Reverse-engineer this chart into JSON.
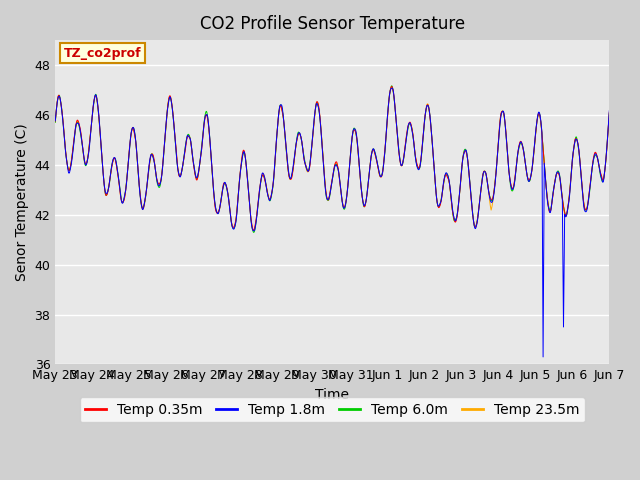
{
  "title": "CO2 Profile Sensor Temperature",
  "xlabel": "Time",
  "ylabel": "Senor Temperature (C)",
  "ylim": [
    36,
    49
  ],
  "yticks": [
    36,
    38,
    40,
    42,
    44,
    46,
    48
  ],
  "x_labels": [
    "May 23",
    "May 24",
    "May 25",
    "May 26",
    "May 27",
    "May 28",
    "May 29",
    "May 30",
    "May 31",
    "Jun 1",
    "Jun 2",
    "Jun 3",
    "Jun 4",
    "Jun 5",
    "Jun 6",
    "Jun 7"
  ],
  "legend_entries": [
    "Temp 0.35m",
    "Temp 1.8m",
    "Temp 6.0m",
    "Temp 23.5m"
  ],
  "legend_colors": [
    "#ff0000",
    "#0000ff",
    "#00cc00",
    "#ffaa00"
  ],
  "line_colors": [
    "#ff0000",
    "#0000ff",
    "#00cc00",
    "#ffaa00"
  ],
  "annotation_text": "TZ_co2prof",
  "annotation_bg": "#ffffdd",
  "annotation_border": "#cc8800",
  "annotation_text_color": "#cc0000",
  "bg_color": "#e8e8e8",
  "grid_color": "#ffffff",
  "title_fontsize": 12,
  "axis_fontsize": 10,
  "tick_fontsize": 9,
  "legend_fontsize": 10,
  "base_temp": 44.0,
  "temp_range_min": 42.0,
  "temp_range_max": 46.5,
  "spike1_val": 36.3,
  "spike2_val": 37.5,
  "spike_day": 13.5
}
